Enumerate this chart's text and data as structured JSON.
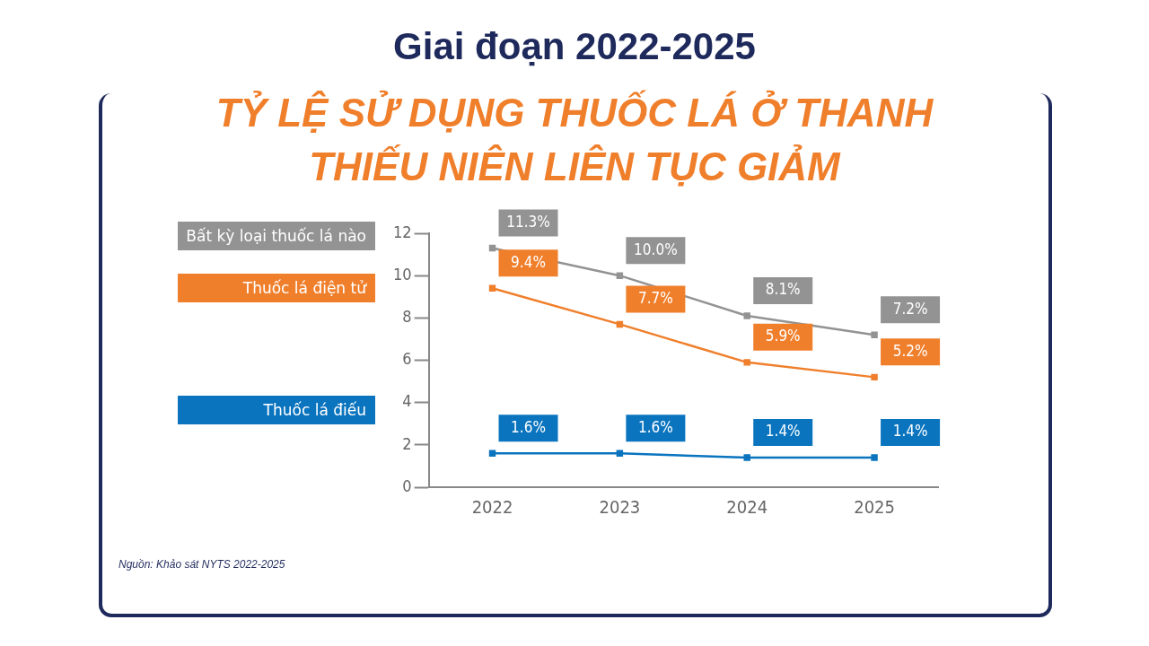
{
  "chart_data": {
    "type": "line",
    "title": "Giai đoạn 2022-2025",
    "subtitle": "TỶ LỆ SỬ DỤNG THUỐC LÁ Ở THANH THIẾU NIÊN LIÊN TỤC GIẢM",
    "categories": [
      "2022",
      "2023",
      "2024",
      "2025"
    ],
    "series": [
      {
        "name": "Bất kỳ loại thuốc lá nào",
        "color": "#939393",
        "values": [
          11.3,
          10.0,
          8.1,
          7.2
        ],
        "value_labels": [
          "11.3%",
          "10.0%",
          "8.1%",
          "7.2%"
        ]
      },
      {
        "name": "Thuốc lá điện tử",
        "color": "#f07f2c",
        "values": [
          9.4,
          7.7,
          5.9,
          5.2
        ],
        "value_labels": [
          "9.4%",
          "7.7%",
          "5.9%",
          "5.2%"
        ]
      },
      {
        "name": "Thuốc lá điếu",
        "color": "#0a74bf",
        "values": [
          1.6,
          1.6,
          1.4,
          1.4
        ],
        "value_labels": [
          "1.6%",
          "1.6%",
          "1.4%",
          "1.4%"
        ]
      }
    ],
    "ylim": [
      0,
      12
    ],
    "yticks": [
      0,
      2,
      4,
      6,
      8,
      10,
      12
    ],
    "grid": false,
    "legend": "left",
    "marker": "square",
    "line_style": "solid",
    "annotations": [
      "Nguồn: Khảo sát NYTS 2022-2025"
    ]
  }
}
